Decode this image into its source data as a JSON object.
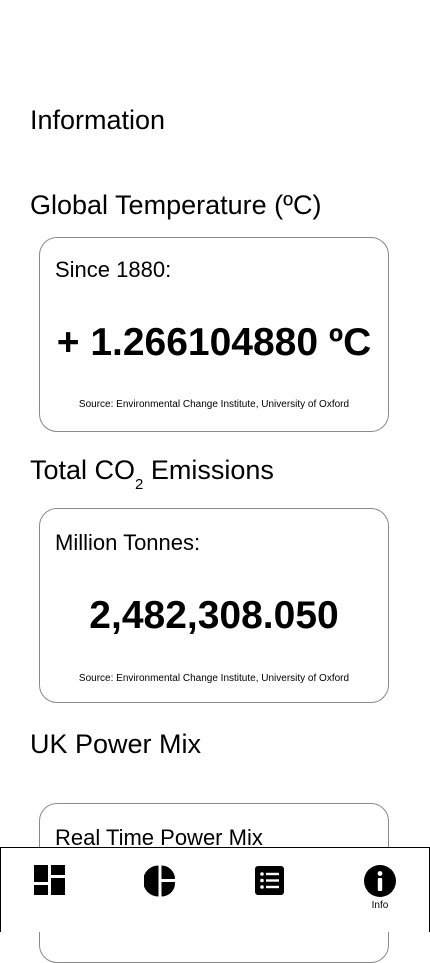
{
  "page": {
    "title": "Information"
  },
  "temperature": {
    "title": "Global Temperature (ºC)",
    "label": "Since 1880:",
    "value": "+ 1.266104880 ºC",
    "source": "Source: Environmental Change Institute, University of Oxford"
  },
  "emissions": {
    "title_prefix": "Total CO",
    "title_subscript": "2",
    "title_suffix": " Emissions",
    "label": "Million Tonnes:",
    "value": "2,482,308.050",
    "source": "Source: Environmental Change Institute, University of Oxford"
  },
  "power_mix": {
    "title": "UK Power Mix",
    "label": "Real Time Power Mix"
  },
  "tabbar": {
    "tabs": [
      {
        "icon": "dashboard-icon",
        "label": ""
      },
      {
        "icon": "pie-chart-icon",
        "label": ""
      },
      {
        "icon": "list-icon",
        "label": ""
      },
      {
        "icon": "info-icon",
        "label": "Info",
        "active": true
      }
    ]
  }
}
